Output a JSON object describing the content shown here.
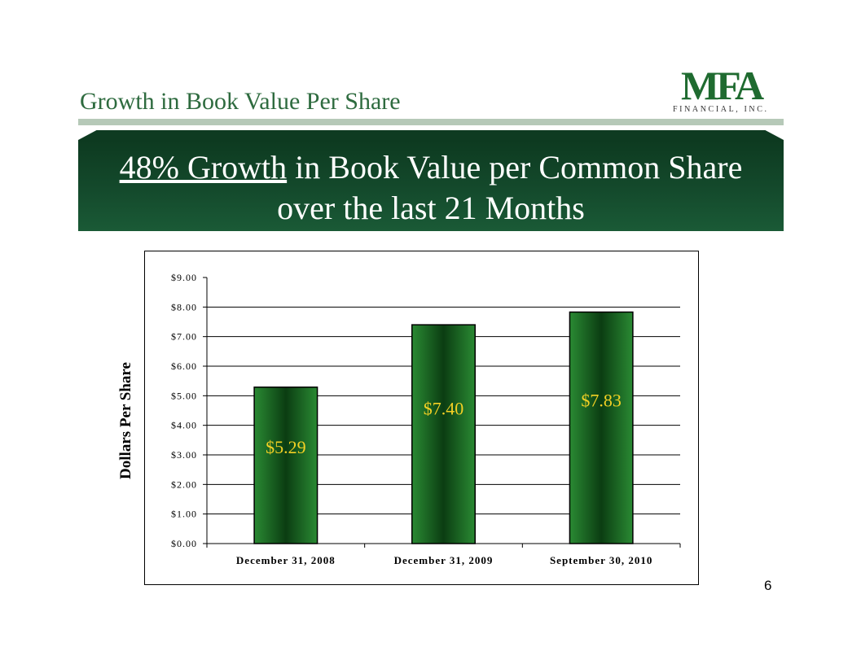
{
  "header": {
    "title": "Growth in Book Value Per Share",
    "logo_mark": "MFA",
    "logo_sub": "FINANCIAL, INC."
  },
  "banner": {
    "line1_underlined": "48% Growth",
    "line1_rest": " in Book Value per Common Share",
    "line2": "over the last 21 Months"
  },
  "colors": {
    "title": "#2e6b3f",
    "banner": "#144a2c",
    "bar": "#1d6e24",
    "bar_label": "#f2d024"
  },
  "chart_data": {
    "type": "bar",
    "categories": [
      "December 31, 2008",
      "December 31, 2009",
      "September 30, 2010"
    ],
    "values": [
      5.29,
      7.4,
      7.83
    ],
    "data_labels": [
      "$5.29",
      "$7.40",
      "$7.83"
    ],
    "title": "",
    "xlabel": "",
    "ylabel": "Dollars Per Share",
    "ylim": [
      0,
      9
    ],
    "yticks": [
      0,
      1,
      2,
      3,
      4,
      5,
      6,
      7,
      8,
      9
    ],
    "ytick_labels": [
      "$0.00",
      "$1.00",
      "$2.00",
      "$3.00",
      "$4.00",
      "$5.00",
      "$6.00",
      "$7.00",
      "$8.00",
      "$9.00"
    ],
    "grid": true,
    "legend": "none"
  },
  "footer": {
    "page_number": "6"
  }
}
